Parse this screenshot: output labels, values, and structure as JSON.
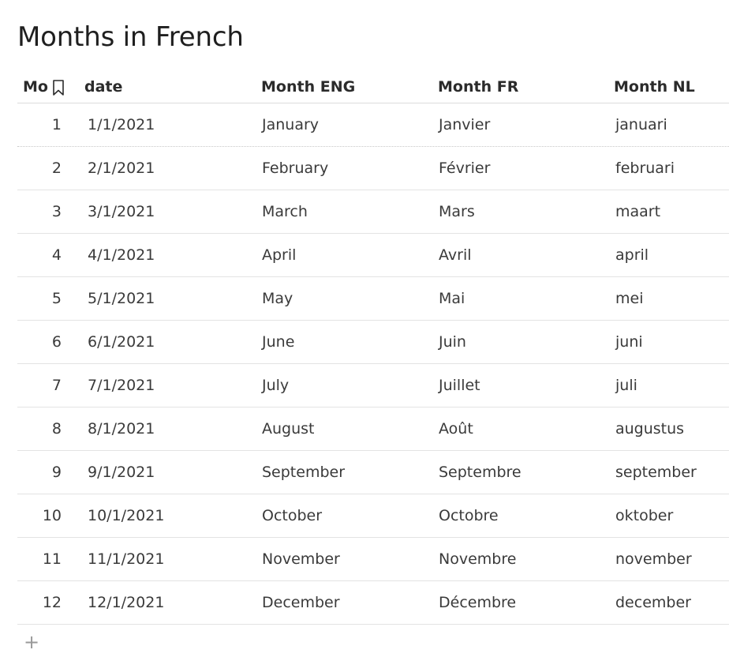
{
  "title": "Months in French",
  "columns": {
    "mo": "Mo",
    "date": "date",
    "month_eng": "Month ENG",
    "month_fr": "Month FR",
    "month_nl": "Month NL"
  },
  "icons": {
    "column_icon": "bookmark-icon",
    "add_row": "plus-icon"
  },
  "add_row_symbol": "+",
  "rows": [
    {
      "mo": "1",
      "date": "1/1/2021",
      "eng": "January",
      "fr": "Janvier",
      "nl": "januari"
    },
    {
      "mo": "2",
      "date": "2/1/2021",
      "eng": "February",
      "fr": "Février",
      "nl": "februari"
    },
    {
      "mo": "3",
      "date": "3/1/2021",
      "eng": "March",
      "fr": "Mars",
      "nl": "maart"
    },
    {
      "mo": "4",
      "date": "4/1/2021",
      "eng": "April",
      "fr": "Avril",
      "nl": "april"
    },
    {
      "mo": "5",
      "date": "5/1/2021",
      "eng": "May",
      "fr": "Mai",
      "nl": "mei"
    },
    {
      "mo": "6",
      "date": "6/1/2021",
      "eng": "June",
      "fr": "Juin",
      "nl": "juni"
    },
    {
      "mo": "7",
      "date": "7/1/2021",
      "eng": "July",
      "fr": "Juillet",
      "nl": "juli"
    },
    {
      "mo": "8",
      "date": "8/1/2021",
      "eng": "August",
      "fr": "Août",
      "nl": "augustus"
    },
    {
      "mo": "9",
      "date": "9/1/2021",
      "eng": "September",
      "fr": "Septembre",
      "nl": "september"
    },
    {
      "mo": "10",
      "date": "10/1/2021",
      "eng": "October",
      "fr": "Octobre",
      "nl": "oktober"
    },
    {
      "mo": "11",
      "date": "11/1/2021",
      "eng": "November",
      "fr": "Novembre",
      "nl": "november"
    },
    {
      "mo": "12",
      "date": "12/1/2021",
      "eng": "December",
      "fr": "Décembre",
      "nl": "december"
    }
  ]
}
